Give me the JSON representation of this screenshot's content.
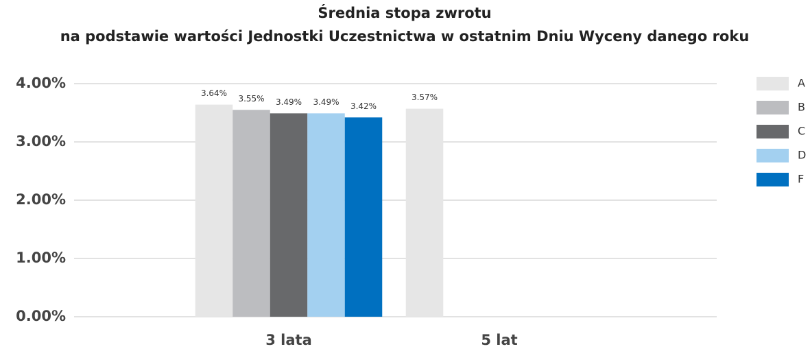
{
  "chart_data": {
    "type": "bar",
    "title": "Średnia stopa zwrotu",
    "subtitle": "na podstawie wartości Jednostki Uczestnictwa w ostatnim Dniu Wyceny danego roku",
    "categories": [
      "3 lata",
      "5 lat"
    ],
    "series": [
      {
        "name": "A",
        "color": "#e6e6e6",
        "values": [
          3.64,
          3.57
        ],
        "value_labels": [
          "3.64%",
          "3.57%"
        ]
      },
      {
        "name": "B",
        "color": "#bcbdc0",
        "values": [
          3.55,
          null
        ],
        "value_labels": [
          "3.55%",
          null
        ]
      },
      {
        "name": "C",
        "color": "#68696b",
        "values": [
          3.49,
          null
        ],
        "value_labels": [
          "3.49%",
          null
        ]
      },
      {
        "name": "D",
        "color": "#a3d0f0",
        "values": [
          3.49,
          null
        ],
        "value_labels": [
          "3.49%",
          null
        ]
      },
      {
        "name": "F",
        "color": "#0070c0",
        "values": [
          3.42,
          null
        ],
        "value_labels": [
          "3.42%",
          null
        ]
      }
    ],
    "ylim": [
      0,
      4
    ],
    "yticks": [
      {
        "value": 0,
        "label": "0.00%"
      },
      {
        "value": 1,
        "label": "1.00%"
      },
      {
        "value": 2,
        "label": "2.00%"
      },
      {
        "value": 3,
        "label": "3.00%"
      },
      {
        "value": 4,
        "label": "4.00%"
      }
    ],
    "grid": true,
    "legend": "right"
  }
}
